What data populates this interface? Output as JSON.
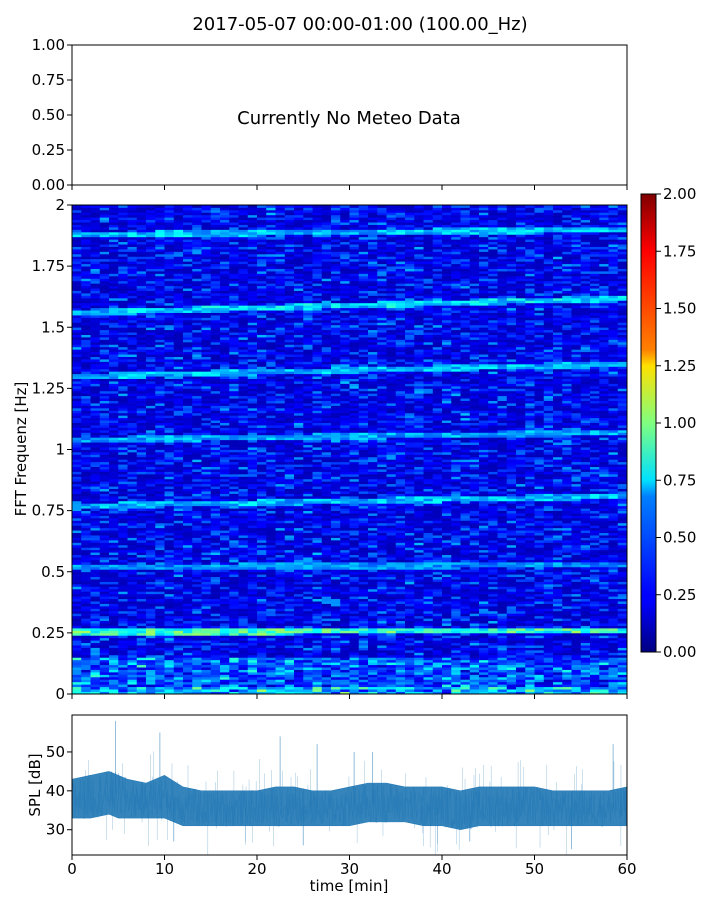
{
  "title": "2017-05-07 00:00-01:00 (100.00_Hz)",
  "chart_data": [
    {
      "type": "line",
      "panel": "meteo",
      "annotation": "Currently No Meteo Data",
      "xlim": [
        0,
        60
      ],
      "ylim": [
        0,
        1
      ],
      "y_ticks": [
        "0.00",
        "0.25",
        "0.50",
        "0.75",
        "1.00"
      ],
      "y_tick_values": [
        0,
        0.25,
        0.5,
        0.75,
        1.0
      ],
      "x_ticks_labelled": false,
      "series": []
    },
    {
      "type": "heatmap",
      "panel": "spectrogram",
      "ylabel": "FFT Frequenz [Hz]",
      "xlim": [
        0,
        60
      ],
      "ylim": [
        0,
        2
      ],
      "y_ticks": [
        "0",
        "0.25",
        "0.5",
        "0.75",
        "1",
        "1.25",
        "1.5",
        "1.75",
        "2"
      ],
      "y_tick_values": [
        0,
        0.25,
        0.5,
        0.75,
        1,
        1.25,
        1.5,
        1.75,
        2
      ],
      "colormap": "jet",
      "colorbar": {
        "range": [
          0,
          2
        ],
        "ticks": [
          "0.00",
          "0.25",
          "0.50",
          "0.75",
          "1.00",
          "1.25",
          "1.50",
          "1.75",
          "2.00"
        ],
        "tick_values": [
          0,
          0.25,
          0.5,
          0.75,
          1,
          1.25,
          1.5,
          1.75,
          2
        ]
      },
      "background_level": 0.3,
      "spectral_lines": [
        {
          "start_freq": 0.255,
          "end_freq": 0.26,
          "level": 0.9
        },
        {
          "start_freq": 0.52,
          "end_freq": 0.53,
          "level": 0.55
        },
        {
          "start_freq": 0.77,
          "end_freq": 0.81,
          "level": 0.65
        },
        {
          "start_freq": 1.04,
          "end_freq": 1.07,
          "level": 0.6
        },
        {
          "start_freq": 1.3,
          "end_freq": 1.35,
          "level": 0.65
        },
        {
          "start_freq": 1.56,
          "end_freq": 1.62,
          "level": 0.7
        },
        {
          "start_freq": 1.88,
          "end_freq": 1.9,
          "level": 0.65
        }
      ]
    },
    {
      "type": "area",
      "panel": "spl",
      "xlabel": "time [min]",
      "ylabel": "SPL [dB]",
      "xlim": [
        0,
        60
      ],
      "ylim": [
        23.5,
        59.5
      ],
      "x_ticks": [
        "0",
        "10",
        "20",
        "30",
        "40",
        "50",
        "60"
      ],
      "x_tick_values": [
        0,
        10,
        20,
        30,
        40,
        50,
        60
      ],
      "y_ticks": [
        "30",
        "40",
        "50"
      ],
      "y_tick_values": [
        30,
        40,
        50
      ],
      "color": "#1f77b4",
      "series": [
        {
          "x": [
            0,
            2,
            4,
            5,
            6,
            8,
            10,
            12,
            14,
            16,
            18,
            20,
            22,
            24,
            26,
            28,
            30,
            32,
            34,
            36,
            38,
            40,
            42,
            44,
            46,
            48,
            50,
            52,
            54,
            56,
            58,
            60
          ],
          "y_low": [
            33,
            33,
            34,
            33,
            33,
            33,
            33,
            31,
            31,
            31,
            31,
            31,
            31,
            31,
            31,
            31,
            31,
            32,
            32,
            32,
            31,
            31,
            30,
            31,
            31,
            31,
            31,
            31,
            31,
            31,
            31,
            31
          ],
          "y_high": [
            43,
            44,
            45,
            44,
            43,
            42,
            44,
            41,
            40,
            40,
            40,
            40,
            41,
            41,
            40,
            40,
            41,
            42,
            42,
            41,
            41,
            41,
            40,
            41,
            41,
            41,
            41,
            40,
            40,
            40,
            40,
            41
          ],
          "y_median": [
            38,
            38.5,
            39.5,
            39,
            38,
            37.5,
            38.5,
            36,
            35.5,
            35.5,
            35.5,
            35.5,
            36,
            36,
            35.5,
            35.5,
            36,
            36.5,
            37,
            36.5,
            36,
            36,
            35,
            35.5,
            36,
            36,
            36,
            35.5,
            35.5,
            35.5,
            35.5,
            36
          ],
          "spikes": [
            [
              4.7,
              58
            ],
            [
              9.5,
              55
            ],
            [
              22.5,
              54
            ],
            [
              26.5,
              52
            ],
            [
              30.5,
              50
            ],
            [
              32.5,
              50
            ],
            [
              58.5,
              52
            ],
            [
              11,
              27
            ],
            [
              25,
              26
            ],
            [
              43,
              27
            ],
            [
              54,
              25
            ]
          ]
        }
      ]
    }
  ]
}
